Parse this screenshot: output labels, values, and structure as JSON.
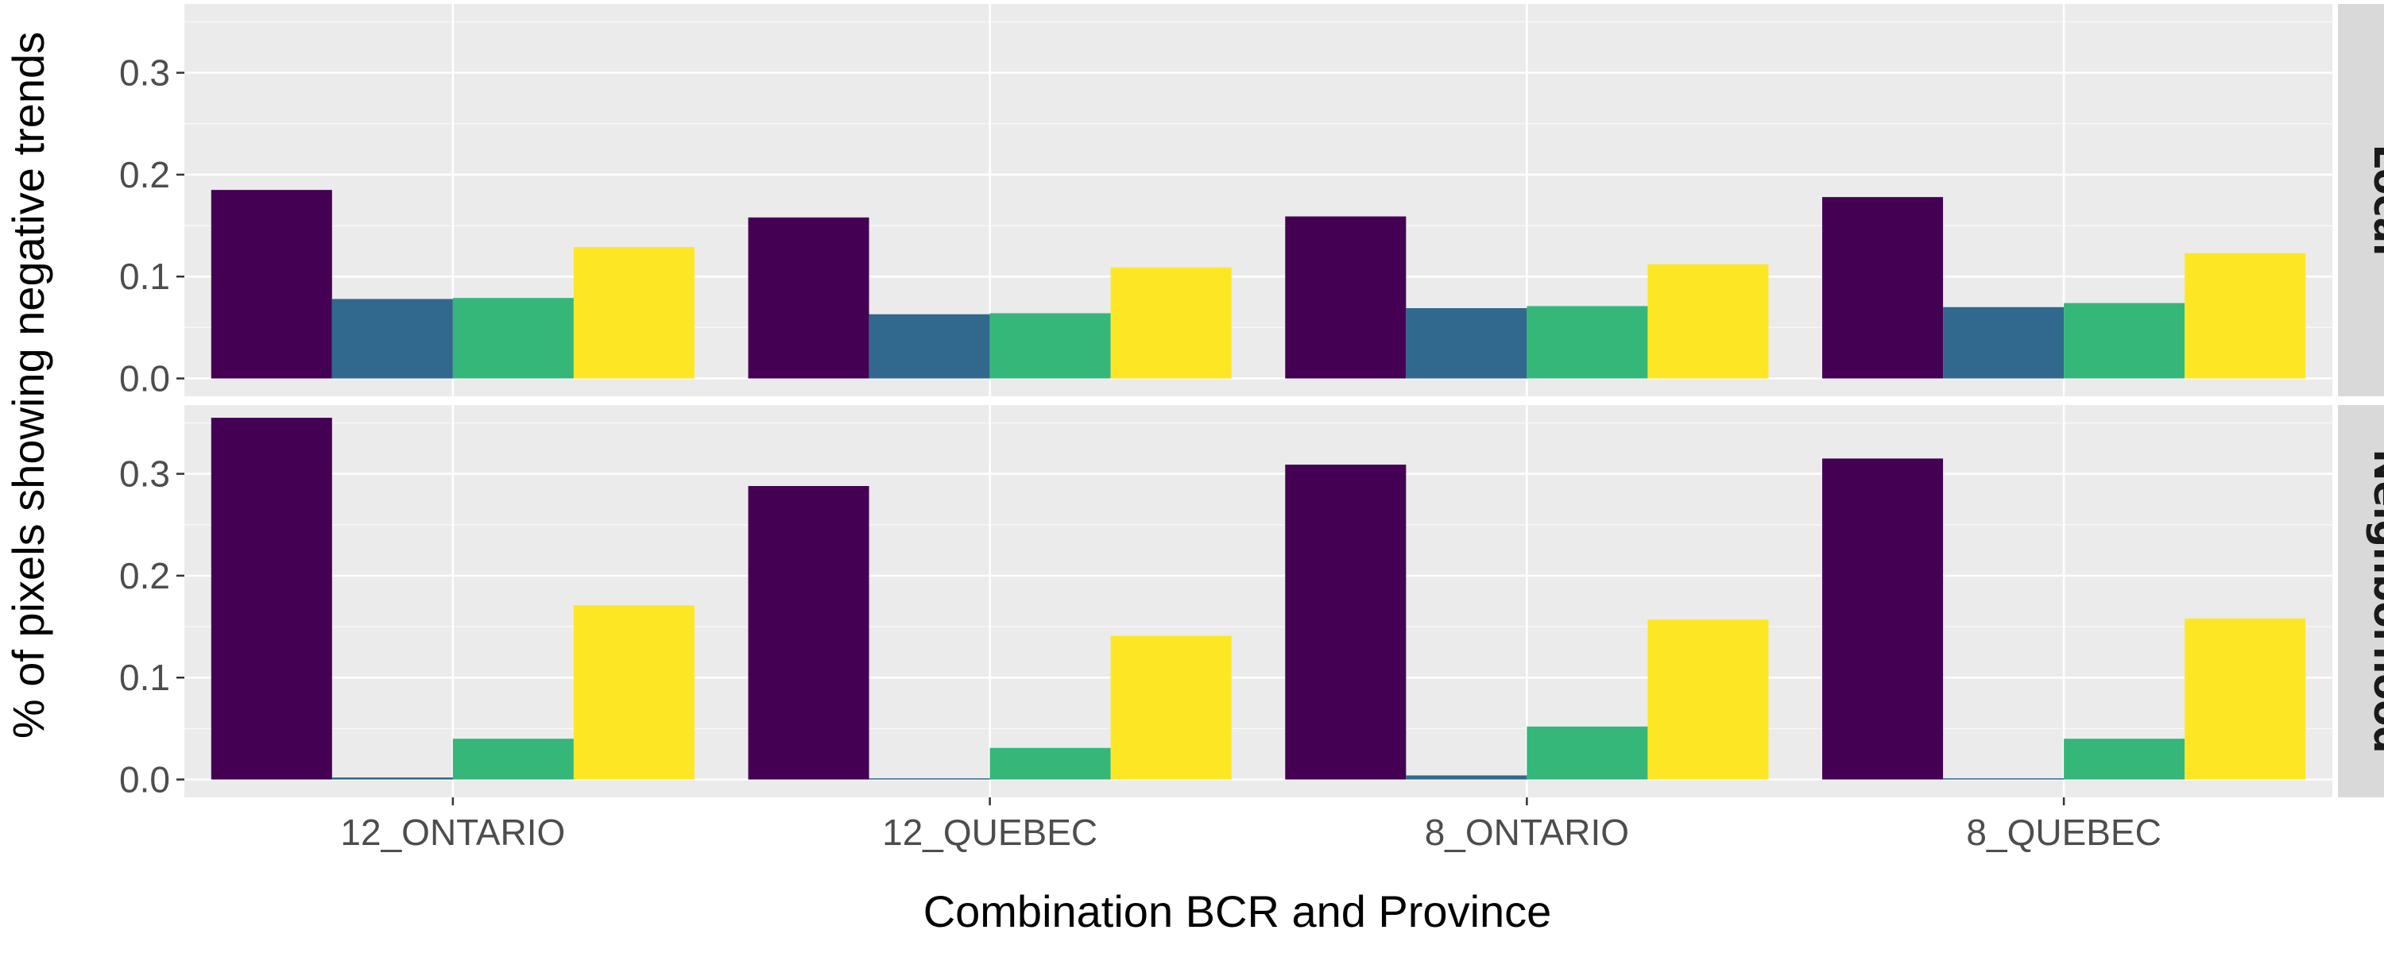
{
  "chart_data": {
    "type": "bar",
    "xlabel": "Combination BCR and Province",
    "ylabel": "% of pixels showing negative trends",
    "categories": [
      "12_ONTARIO",
      "12_QUEBEC",
      "8_ONTARIO",
      "8_QUEBEC"
    ],
    "ylim": [
      0,
      0.35
    ],
    "yticks": [
      "0.0",
      "0.1",
      "0.2",
      "0.3"
    ],
    "grid": true,
    "legend": "none",
    "series_colors": [
      "#440154",
      "#31688e",
      "#35b779",
      "#fde725"
    ],
    "panels": [
      {
        "strip": "Local",
        "series": [
          {
            "values": [
              0.185,
              0.158,
              0.159,
              0.178
            ]
          },
          {
            "values": [
              0.078,
              0.063,
              0.069,
              0.07
            ]
          },
          {
            "values": [
              0.079,
              0.064,
              0.071,
              0.074
            ]
          },
          {
            "values": [
              0.129,
              0.109,
              0.112,
              0.123
            ]
          }
        ]
      },
      {
        "strip": "Neighborhood",
        "series": [
          {
            "values": [
              0.355,
              0.288,
              0.309,
              0.315
            ]
          },
          {
            "values": [
              0.002,
              0.001,
              0.004,
              0.001
            ]
          },
          {
            "values": [
              0.04,
              0.031,
              0.052,
              0.04
            ]
          },
          {
            "values": [
              0.171,
              0.141,
              0.157,
              0.158
            ]
          }
        ]
      }
    ]
  }
}
